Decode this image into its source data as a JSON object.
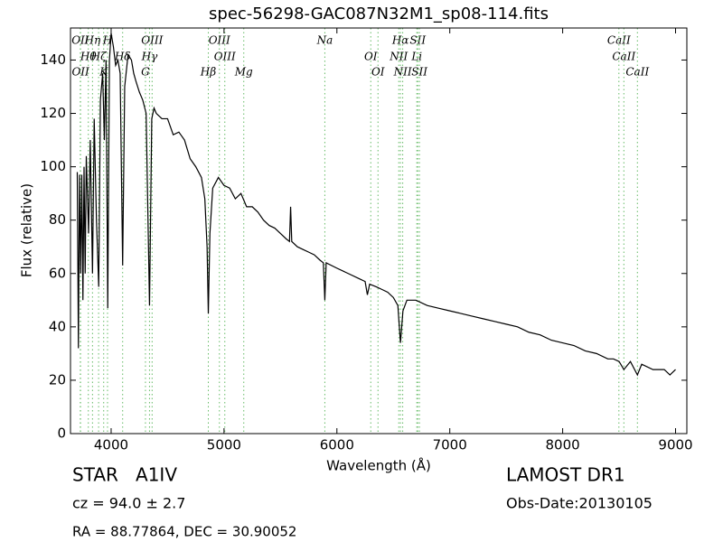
{
  "chart_data": {
    "type": "line",
    "title": "spec-56298-GAC087N32M1_sp08-114.fits",
    "x_label": "Wavelength (Å)",
    "y_label": "Flux (relative)",
    "xlim": [
      3640,
      9100
    ],
    "ylim": [
      0,
      152
    ],
    "xticks": [
      4000,
      5000,
      6000,
      7000,
      8000,
      9000
    ],
    "yticks": [
      0,
      20,
      40,
      60,
      80,
      100,
      120,
      140
    ],
    "series": [
      {
        "color": "#000000",
        "x": [
          3700,
          3710,
          3720,
          3730,
          3740,
          3750,
          3760,
          3770,
          3780,
          3800,
          3815,
          3835,
          3850,
          3870,
          3890,
          3905,
          3925,
          3940,
          3955,
          3970,
          3985,
          4000,
          4020,
          4040,
          4060,
          4080,
          4102,
          4120,
          4150,
          4180,
          4200,
          4220,
          4250,
          4280,
          4310,
          4340,
          4360,
          4380,
          4400,
          4450,
          4500,
          4550,
          4600,
          4650,
          4700,
          4750,
          4800,
          4830,
          4850,
          4861,
          4875,
          4900,
          4950,
          5000,
          5050,
          5100,
          5150,
          5200,
          5250,
          5300,
          5350,
          5400,
          5450,
          5500,
          5550,
          5580,
          5590,
          5600,
          5650,
          5700,
          5750,
          5800,
          5850,
          5880,
          5893,
          5905,
          6000,
          6100,
          6200,
          6250,
          6270,
          6290,
          6350,
          6400,
          6450,
          6500,
          6540,
          6563,
          6585,
          6620,
          6700,
          6800,
          6900,
          7000,
          7100,
          7200,
          7300,
          7400,
          7500,
          7600,
          7700,
          7800,
          7900,
          8000,
          8100,
          8200,
          8300,
          8400,
          8450,
          8500,
          8542,
          8600,
          8662,
          8700,
          8800,
          8900,
          8950,
          9000
        ],
        "values": [
          98,
          32,
          97,
          60,
          97,
          50,
          100,
          60,
          104,
          75,
          110,
          60,
          118,
          80,
          55,
          125,
          135,
          110,
          140,
          47,
          140,
          150,
          145,
          138,
          140,
          135,
          63,
          130,
          142,
          140,
          135,
          132,
          128,
          125,
          120,
          48,
          118,
          122,
          120,
          118,
          118,
          112,
          113,
          110,
          103,
          100,
          96,
          88,
          70,
          45,
          75,
          92,
          96,
          93,
          92,
          88,
          90,
          85,
          85,
          83,
          80,
          78,
          77,
          75,
          73,
          72,
          85,
          72,
          70,
          69,
          68,
          67,
          65,
          64,
          50,
          64,
          62,
          60,
          58,
          57,
          52,
          56,
          55,
          54,
          53,
          51,
          48,
          34,
          46,
          50,
          50,
          48,
          47,
          46,
          45,
          44,
          43,
          42,
          41,
          40,
          38,
          37,
          35,
          34,
          33,
          31,
          30,
          28,
          28,
          27,
          24,
          27,
          22,
          26,
          24,
          24,
          22,
          24
        ]
      }
    ],
    "line_color": "#66bb66",
    "spectral_lines": [
      {
        "label": "OII",
        "wavelength": 3727
      },
      {
        "label": "Hθ",
        "wavelength": 3798
      },
      {
        "label": "OII",
        "wavelength": 3729
      },
      {
        "label": "Hη",
        "wavelength": 3835
      },
      {
        "label": "Hζ",
        "wavelength": 3889
      },
      {
        "label": "K",
        "wavelength": 3934
      },
      {
        "label": "H",
        "wavelength": 3968
      },
      {
        "label": "Hδ",
        "wavelength": 4102
      },
      {
        "label": "G",
        "wavelength": 4304
      },
      {
        "label": "OIII",
        "wavelength": 4363
      },
      {
        "label": "Hγ",
        "wavelength": 4340
      },
      {
        "label": "Hβ",
        "wavelength": 4861
      },
      {
        "label": "OIII",
        "wavelength": 4959
      },
      {
        "label": "OIII",
        "wavelength": 5007
      },
      {
        "label": "Mg",
        "wavelength": 5175
      },
      {
        "label": "Na",
        "wavelength": 5893
      },
      {
        "label": "OI",
        "wavelength": 6300
      },
      {
        "label": "OI",
        "wavelength": 6364
      },
      {
        "label": "Hα",
        "wavelength": 6563
      },
      {
        "label": "NII",
        "wavelength": 6548
      },
      {
        "label": "NII",
        "wavelength": 6583
      },
      {
        "label": "SII",
        "wavelength": 6716
      },
      {
        "label": "Li",
        "wavelength": 6708
      },
      {
        "label": "SII",
        "wavelength": 6731
      },
      {
        "label": "CaII",
        "wavelength": 8498
      },
      {
        "label": "CaII",
        "wavelength": 8542
      },
      {
        "label": "CaII",
        "wavelength": 8662
      }
    ],
    "annotations": [
      "STAR   A1IV",
      "cz = 94.0 ± 2.7",
      "RA = 88.77864, DEC = 30.90052",
      "LAMOST DR1",
      "Obs-Date:20130105"
    ]
  }
}
